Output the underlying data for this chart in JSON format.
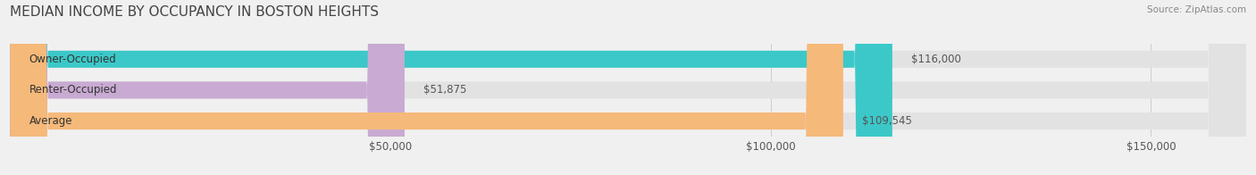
{
  "title": "MEDIAN INCOME BY OCCUPANCY IN BOSTON HEIGHTS",
  "source": "Source: ZipAtlas.com",
  "categories": [
    "Owner-Occupied",
    "Renter-Occupied",
    "Average"
  ],
  "values": [
    116000,
    51875,
    109545
  ],
  "bar_colors": [
    "#3cc8c8",
    "#c8aad2",
    "#f5b97a"
  ],
  "value_labels": [
    "$116,000",
    "$51,875",
    "$109,545"
  ],
  "xlim": [
    0,
    162500
  ],
  "xticks": [
    0,
    50000,
    100000,
    150000
  ],
  "xticklabels": [
    "$50,000",
    "$100,000",
    "$150,000"
  ],
  "background_color": "#f0f0f0",
  "bar_bg_color": "#e2e2e2",
  "title_fontsize": 11,
  "label_fontsize": 8.5,
  "tick_fontsize": 8.5,
  "bar_height": 0.55,
  "figsize": [
    14.06,
    1.96
  ],
  "dpi": 100
}
